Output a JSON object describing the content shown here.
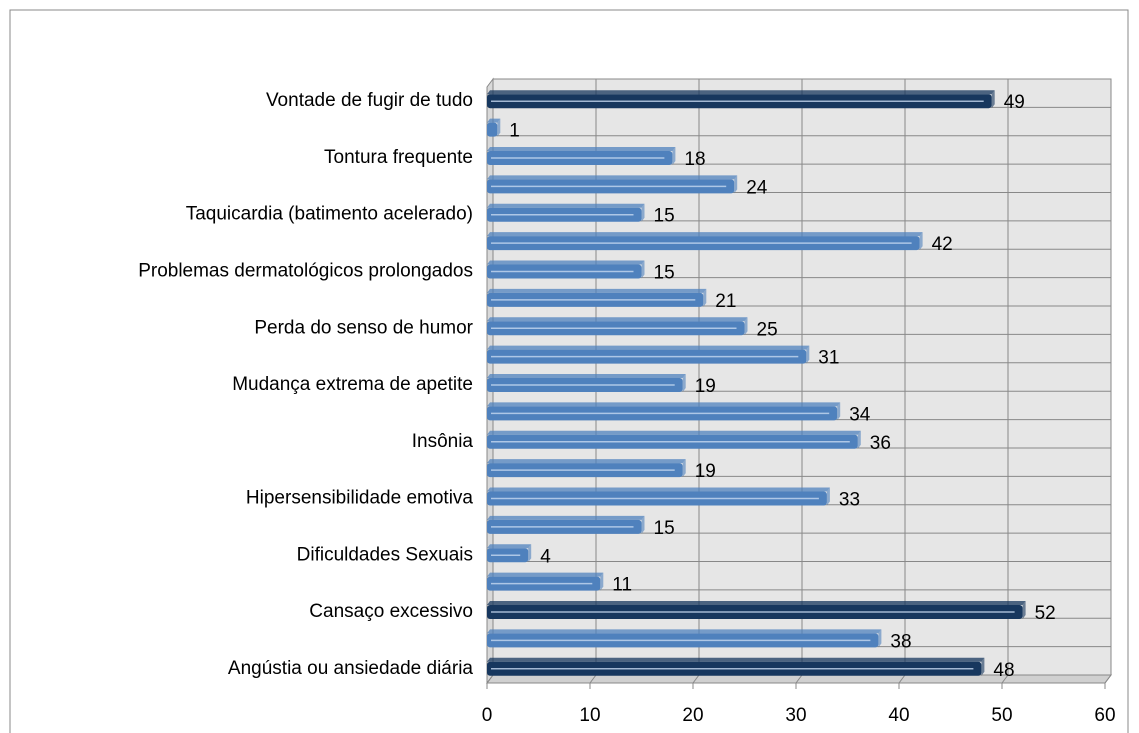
{
  "chart_data": {
    "type": "hbar",
    "categories": [
      "Vontade de fugir de tudo",
      null,
      "Tontura frequente",
      null,
      "Taquicardia (batimento acelerado)",
      null,
      "Problemas dermatológicos prolongados",
      null,
      "Perda do senso de humor",
      null,
      "Mudança extrema de apetite",
      null,
      "Insônia",
      null,
      "Hipersensibilidade emotiva",
      null,
      "Dificuldades Sexuais",
      null,
      "Cansaço excessivo",
      null,
      "Angústia ou ansiedade diária"
    ],
    "values": [
      49,
      1,
      18,
      24,
      15,
      42,
      15,
      21,
      25,
      31,
      19,
      34,
      36,
      19,
      33,
      15,
      4,
      11,
      52,
      38,
      48
    ],
    "colors": [
      "#17375e",
      "#4f81bd",
      "#4f81bd",
      "#4f81bd",
      "#4f81bd",
      "#4f81bd",
      "#4f81bd",
      "#4f81bd",
      "#4f81bd",
      "#4f81bd",
      "#4f81bd",
      "#4f81bd",
      "#4f81bd",
      "#4f81bd",
      "#4f81bd",
      "#4f81bd",
      "#4f81bd",
      "#4f81bd",
      "#17375e",
      "#4f81bd",
      "#17375e"
    ],
    "xlim": [
      0,
      60
    ],
    "xticks": [
      0,
      10,
      20,
      30,
      40,
      50,
      60
    ],
    "grid": true,
    "data_labels": true
  }
}
